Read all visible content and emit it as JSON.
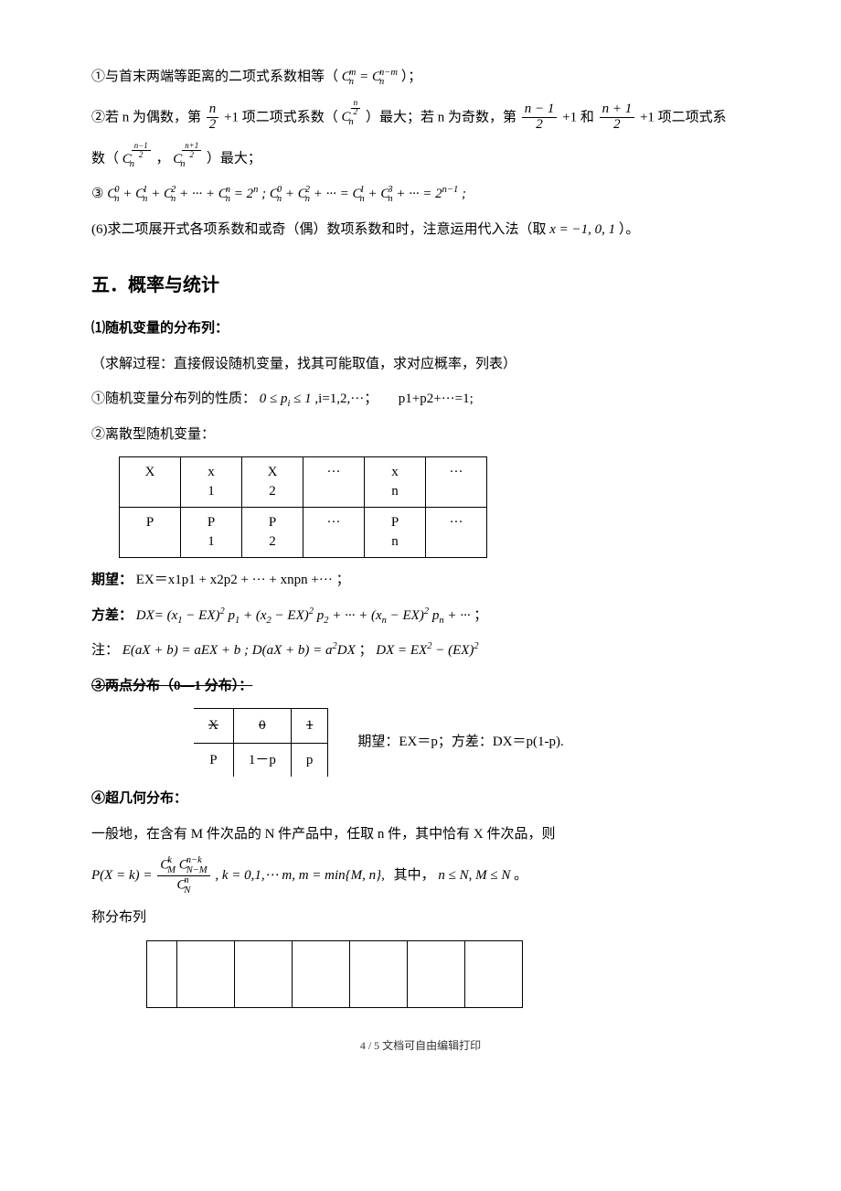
{
  "p1_pre": "①与首末两端等距离的二项式系数相等（",
  "p1_math": "C<span class='supsub'><span class='ss-sup'>m</span><span class='ss-sub'>n</span></span> = C<span class='supsub'><span class='ss-sup'>n−m</span><span class='ss-sub'>n</span></span>",
  "p1_post": "）；",
  "p2_a": "②若 n 为偶数，第 ",
  "p2_frac1_num": "n",
  "p2_frac1_den": "2",
  "p2_b": " +1 项二项式系数（",
  "p2_math1": "C<span class='supsub'><span class='ss-sup'><span class='frac' style='font-size:0.9em'><span class='num'>n</span><span class='den'>2</span></span></span><span class='ss-sub'>n</span></span>",
  "p2_c": "）最大；若 n 为奇数，第 ",
  "p2_frac2_num": "n − 1",
  "p2_frac2_den": "2",
  "p2_d": " +1 和 ",
  "p2_frac3_num": "n + 1",
  "p2_frac3_den": "2",
  "p2_e": " +1 项二项式系",
  "p2_f": "数（",
  "p2_math2": "C<span class='supsub'><span class='ss-sup'><span class='frac' style='font-size:0.85em'><span class='num'>n−1</span><span class='den'>2</span></span></span><span class='ss-sub'>n</span></span>",
  "p2_g": "，",
  "p2_math3": "C<span class='supsub'><span class='ss-sup'><span class='frac' style='font-size:0.85em'><span class='num'>n+1</span><span class='den'>2</span></span></span><span class='ss-sub'>n</span></span>",
  "p2_h": "）最大；",
  "p3_pre": "③",
  "p3_math": "C<span class='supsub'><span class='ss-sup'>0</span><span class='ss-sub'>n</span></span> + C<span class='supsub'><span class='ss-sup'>1</span><span class='ss-sub'>n</span></span> + C<span class='supsub'><span class='ss-sup'>2</span><span class='ss-sub'>n</span></span> + ··· + C<span class='supsub'><span class='ss-sup'>n</span><span class='ss-sub'>n</span></span> = 2<sup>n</sup> ; C<span class='supsub'><span class='ss-sup'>0</span><span class='ss-sub'>n</span></span> + C<span class='supsub'><span class='ss-sup'>2</span><span class='ss-sub'>n</span></span> + ··· = C<span class='supsub'><span class='ss-sup'>1</span><span class='ss-sub'>n</span></span> + C<span class='supsub'><span class='ss-sup'>3</span><span class='ss-sub'>n</span></span> + ··· = 2<sup>n−1</sup> ;",
  "p4_a": "(6)求二项展开式各项系数和或奇（偶）数项系数和时，注意运用代入法（取",
  "p4_math": "x = −1, 0, 1",
  "p4_b": "）。",
  "h2": "五．概率与统计",
  "p5": "⑴随机变量的分布列：",
  "p6": "（求解过程：直接假设随机变量，找其可能取值，求对应概率，列表）",
  "p7_a": "①随机变量分布列的性质：",
  "p7_math": "0 ≤ p<sub>i</sub> ≤ 1",
  "p7_b": ",i=1,2,···；　　p1+p2+···=1;",
  "p8": "②离散型随机变量：",
  "table1": {
    "r1": [
      "X",
      "x<br>1",
      "X<br>2",
      "···",
      "x<br>n",
      "···"
    ],
    "r2": [
      "P",
      "P<br>1",
      "P<br>2",
      "···",
      "P<br>n",
      "···"
    ]
  },
  "p9_label": "期望：",
  "p9_body": "EX＝x1p1 + x2p2 + ··· + xnpn +··· ；",
  "p10_label": "方差：",
  "p10_math": "DX= (x<sub>1</sub> − EX)<sup>2</sup> p<sub>1</sub> + (x<sub>2</sub> − EX)<sup>2</sup> p<sub>2</sub> + ··· + (x<sub>n</sub> − EX)<sup>2</sup> p<sub>n</sub> + ···",
  "p10_post": "；",
  "p11_label": "注：",
  "p11_math1": "E(aX + b) = aEX + b ; D(aX + b) = a<sup>2</sup>DX",
  "p11_sep": "；",
  "p11_math2": "DX = EX<sup>2</sup> − (EX)<sup>2</sup>",
  "p12": "③两点分布（0—1 分布）：",
  "table2": {
    "r1": [
      "X",
      "0",
      "1"
    ],
    "r2": [
      "P",
      "1－p",
      "p"
    ]
  },
  "p12_side": "期望：EX＝p；方差：DX＝p(1-p).",
  "p13": "④超几何分布：",
  "p14": "一般地，在含有 M 件次品的 N 件产品中，任取 n 件，其中恰有 X 件次品，则",
  "p15_lhs": "P(X = k) = ",
  "p15_frac_num": "C<span class='supsub'><span class='ss-sup'>k</span><span class='ss-sub'>M</span></span> C<span class='supsub'><span class='ss-sup'>n−k</span><span class='ss-sub'>N−M</span></span>",
  "p15_frac_den": "C<span class='supsub'><span class='ss-sup'>n</span><span class='ss-sub'>N</span></span>",
  "p15_mid": ", k = 0,1,&#x22EF; m, m = min{M, n},",
  "p15_post_a": "其中，",
  "p15_post_math": "n ≤ N, M ≤ N",
  "p15_post_b": "。",
  "p16": "称分布列",
  "footer": "4 / 5 文档可自由编辑打印"
}
